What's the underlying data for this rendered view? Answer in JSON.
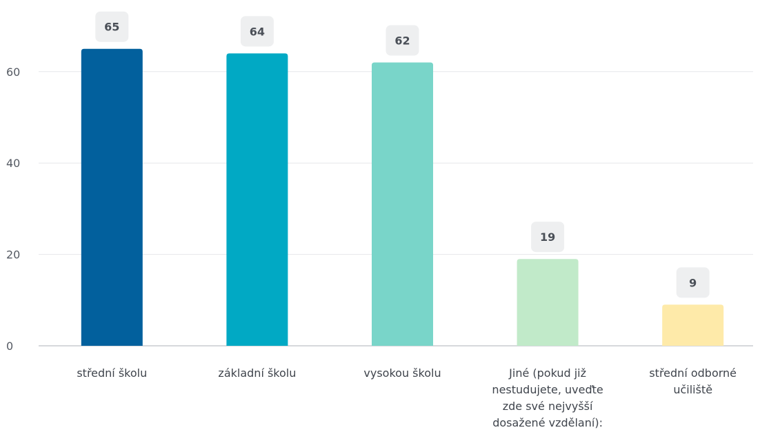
{
  "chart_data": {
    "type": "bar",
    "categories": [
      "střední školu",
      "základní školu",
      "vysokou školu",
      "Jiné (pokud již nestudujete, uveďte zde své nejvyšší dosažené vzdělaní):",
      "střední odborné učiliště"
    ],
    "category_lines": [
      [
        "střední školu"
      ],
      [
        "základní školu"
      ],
      [
        "vysokou školu"
      ],
      [
        "Jiné (pokud již",
        "nestudujete, uveďte",
        "zde své nejvyšší",
        "dosažené vzdělaní):"
      ],
      [
        "střední odborné",
        "učiliště"
      ]
    ],
    "values": [
      65,
      64,
      62,
      19,
      9
    ],
    "data_labels": [
      "65",
      "64",
      "62",
      "19",
      "9"
    ],
    "colors": [
      "#02609d",
      "#01a9c4",
      "#79d5c9",
      "#c1eac9",
      "#feeaa9"
    ],
    "y_ticks": [
      "0",
      "20",
      "40",
      "60"
    ],
    "ylim": [
      0,
      68
    ],
    "grid": true,
    "legend": "none"
  }
}
